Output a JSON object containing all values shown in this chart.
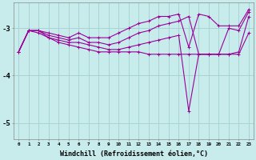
{
  "background_color": "#c8ecec",
  "line_color": "#990099",
  "marker": "+",
  "markersize": 3,
  "linewidth": 0.8,
  "xlabel": "Windchill (Refroidissement éolien,°C)",
  "xlabel_fontsize": 6,
  "yticks": [
    -5,
    -4,
    -3
  ],
  "xticks": [
    0,
    1,
    2,
    3,
    4,
    5,
    6,
    7,
    8,
    9,
    10,
    11,
    12,
    13,
    14,
    15,
    16,
    17,
    18,
    19,
    20,
    21,
    22,
    23
  ],
  "xlim": [
    -0.5,
    23.5
  ],
  "ylim": [
    -5.35,
    -2.45
  ],
  "grid_color": "#aad4d4",
  "series": [
    [
      -3.5,
      -3.05,
      -3.05,
      -3.1,
      -3.15,
      -3.2,
      -3.1,
      -3.2,
      -3.2,
      -3.2,
      -3.1,
      -3.0,
      -2.9,
      -2.85,
      -2.75,
      -2.75,
      -2.7,
      -3.4,
      -2.7,
      -2.75,
      -2.95,
      -2.95,
      -2.95,
      -2.6
    ],
    [
      -3.5,
      -3.05,
      -3.05,
      -3.15,
      -3.2,
      -3.25,
      -3.2,
      -3.3,
      -3.3,
      -3.35,
      -3.3,
      -3.2,
      -3.1,
      -3.05,
      -2.95,
      -2.9,
      -2.85,
      -2.75,
      -3.55,
      -3.55,
      -3.55,
      -3.0,
      -3.05,
      -2.65
    ],
    [
      -3.5,
      -3.05,
      -3.05,
      -3.2,
      -3.25,
      -3.3,
      -3.3,
      -3.35,
      -3.4,
      -3.45,
      -3.45,
      -3.4,
      -3.35,
      -3.3,
      -3.25,
      -3.2,
      -3.15,
      -4.75,
      -3.55,
      -3.55,
      -3.55,
      -3.55,
      -3.5,
      -2.75
    ],
    [
      -3.5,
      -3.05,
      -3.1,
      -3.2,
      -3.3,
      -3.35,
      -3.4,
      -3.45,
      -3.5,
      -3.5,
      -3.5,
      -3.5,
      -3.5,
      -3.55,
      -3.55,
      -3.55,
      -3.55,
      -3.55,
      -3.55,
      -3.55,
      -3.55,
      -3.55,
      -3.55,
      -3.1
    ]
  ]
}
